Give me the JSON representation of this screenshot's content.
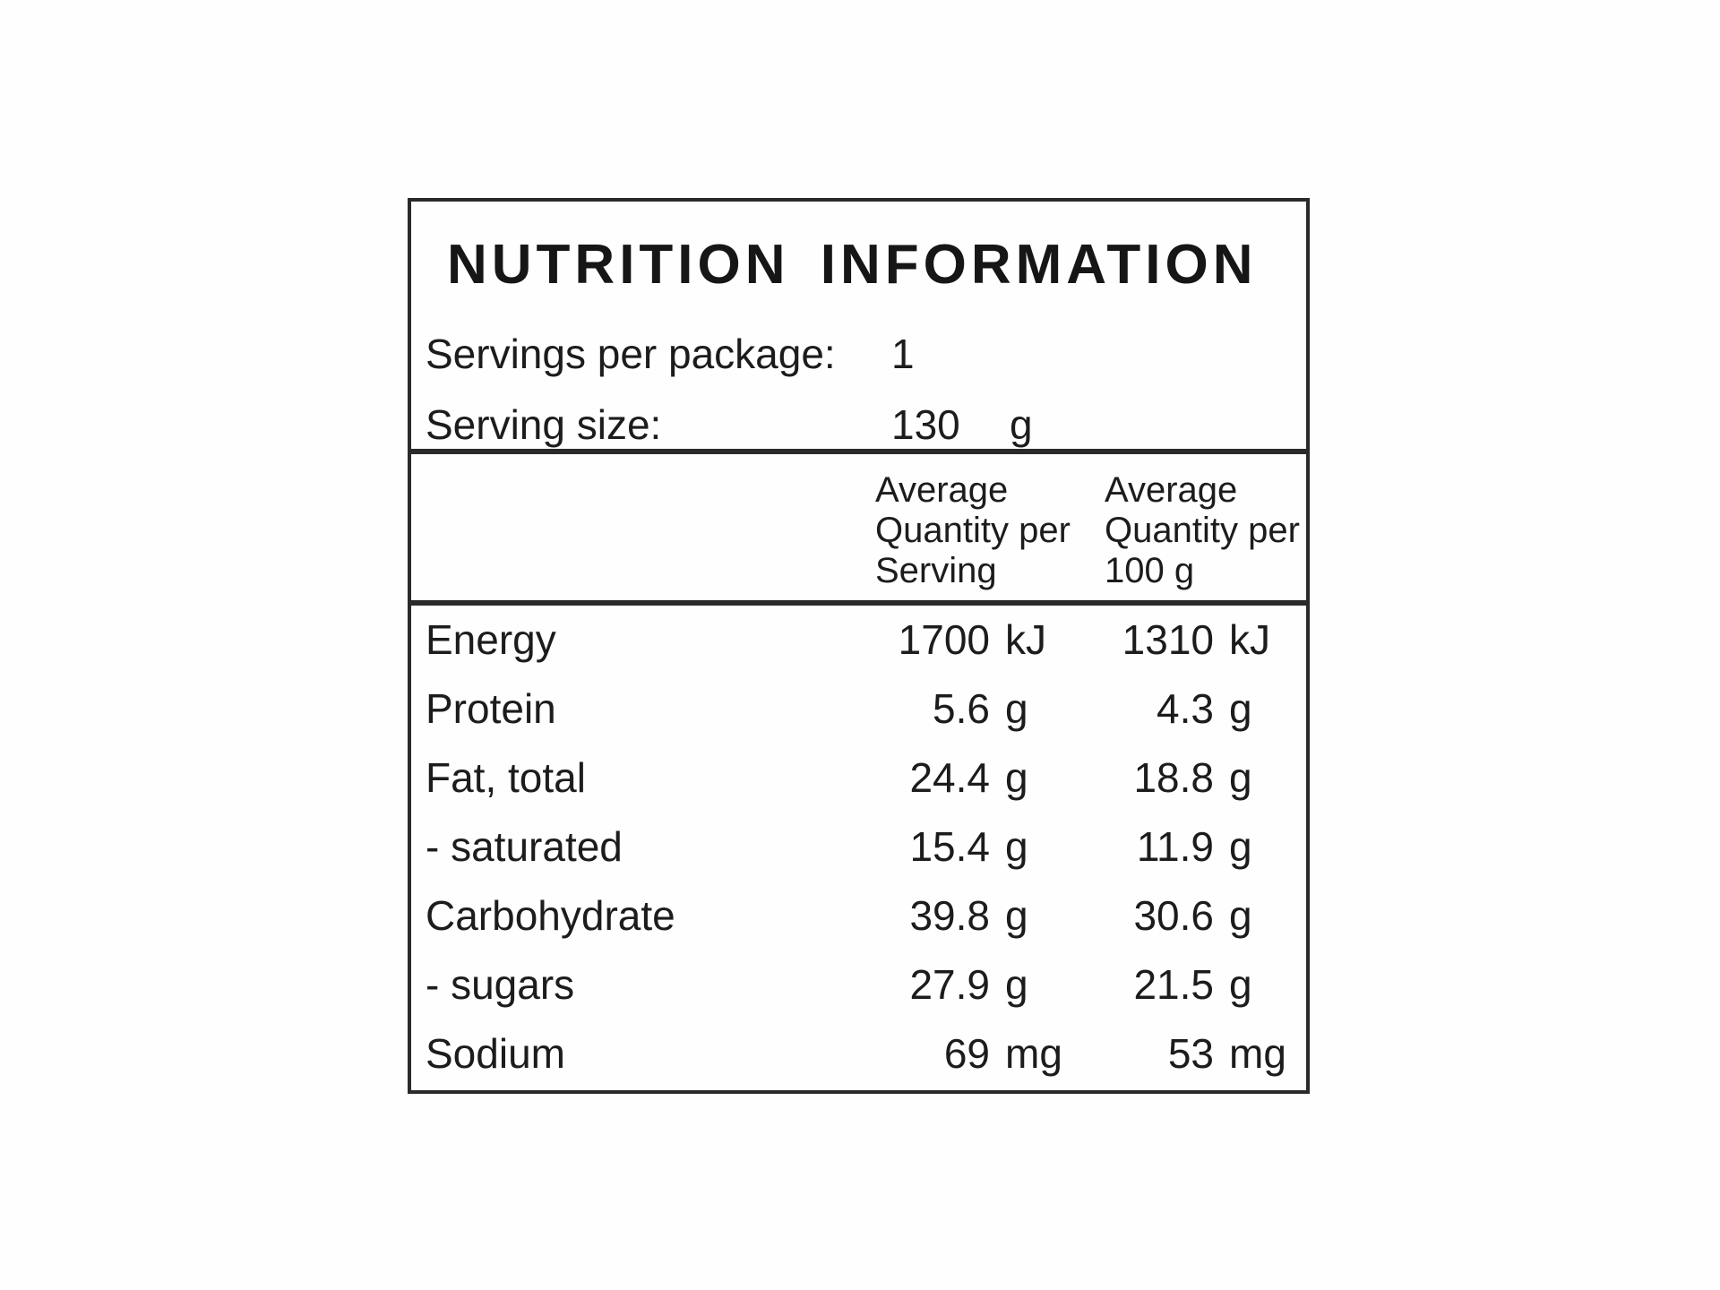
{
  "title": "NUTRITION INFORMATION",
  "package_info": {
    "servings_label": "Servings per package:",
    "servings_value": "1",
    "serving_size_label": "Serving size:",
    "serving_size_value": "130",
    "serving_size_unit": "g"
  },
  "columns": {
    "per_serving": "Average Quantity per Serving",
    "per_100g": "Average Quantity per 100 g"
  },
  "rows": [
    {
      "nutrient": "Energy",
      "per_serving": "1700",
      "per_serving_unit": "kJ",
      "per_100g": "1310",
      "per_100g_unit": "kJ"
    },
    {
      "nutrient": "Protein",
      "per_serving": "5.6",
      "per_serving_unit": "g",
      "per_100g": "4.3",
      "per_100g_unit": "g"
    },
    {
      "nutrient": "Fat, total",
      "per_serving": "24.4",
      "per_serving_unit": "g",
      "per_100g": "18.8",
      "per_100g_unit": "g"
    },
    {
      "nutrient": "- saturated",
      "per_serving": "15.4",
      "per_serving_unit": "g",
      "per_100g": "11.9",
      "per_100g_unit": "g"
    },
    {
      "nutrient": "Carbohydrate",
      "per_serving": "39.8",
      "per_serving_unit": "g",
      "per_100g": "30.6",
      "per_100g_unit": "g"
    },
    {
      "nutrient": "- sugars",
      "per_serving": "27.9",
      "per_serving_unit": "g",
      "per_100g": "21.5",
      "per_100g_unit": "g"
    },
    {
      "nutrient": "Sodium",
      "per_serving": "69",
      "per_serving_unit": "mg",
      "per_100g": "53",
      "per_100g_unit": "mg"
    }
  ],
  "colors": {
    "text": "#1c1c1c",
    "border": "#2a2a2a",
    "background": "#fefefe"
  }
}
